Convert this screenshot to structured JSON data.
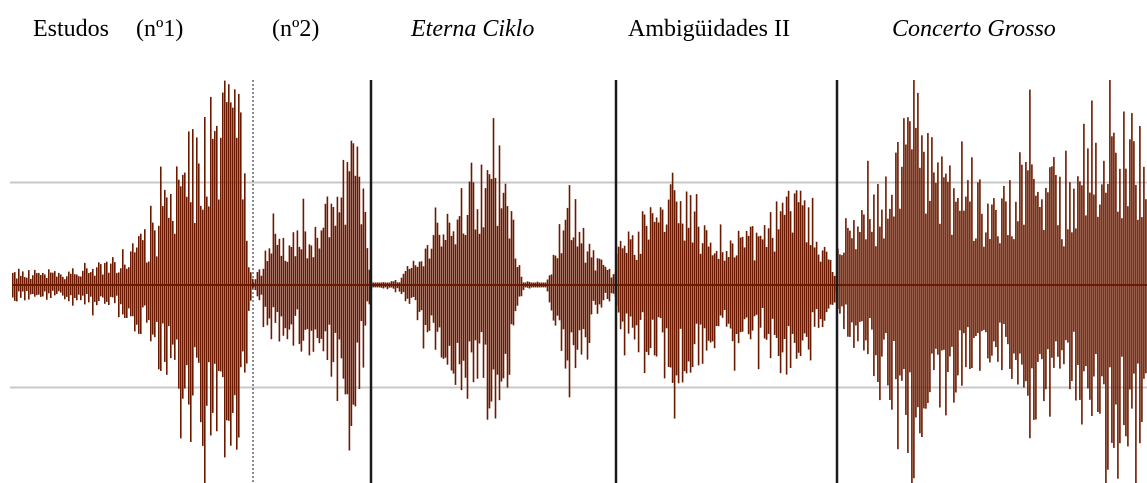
{
  "labels": {
    "estudos": "Estudos",
    "n1": "(nº1)",
    "n2": "(nº2)",
    "eterna": "Eterna Ciklo",
    "ambiguidades": "Ambigüidades II",
    "concerto": "Concerto Grosso"
  },
  "colors": {
    "waveform": "#6b1a00",
    "gridline": "#c8c8c8",
    "divider": "#1a1a1a"
  },
  "chart_data": {
    "type": "area",
    "description_of_series": "audio amplitude envelope",
    "ylim": [
      -1,
      1
    ],
    "gridlines_at": [
      -0.5,
      0,
      0.5
    ],
    "segments": [
      {
        "label": "Estudos (nº1)",
        "x_range": [
          0.0,
          0.212
        ],
        "envelope": [
          [
            0.0,
            0.08
          ],
          [
            0.05,
            0.08
          ],
          [
            0.09,
            0.14
          ],
          [
            0.12,
            0.3
          ],
          [
            0.15,
            0.7
          ],
          [
            0.18,
            1.0
          ],
          [
            0.2,
            1.0
          ],
          [
            0.21,
            0.05
          ]
        ]
      },
      {
        "label": "(nº2)",
        "x_range": [
          0.212,
          0.316
        ],
        "envelope": [
          [
            0.212,
            0.01
          ],
          [
            0.23,
            0.3
          ],
          [
            0.26,
            0.35
          ],
          [
            0.28,
            0.5
          ],
          [
            0.3,
            1.0
          ],
          [
            0.31,
            0.3
          ],
          [
            0.316,
            0.02
          ]
        ]
      },
      {
        "label": "Eterna Ciklo",
        "x_range": [
          0.316,
          0.532
        ],
        "envelope": [
          [
            0.316,
            0.01
          ],
          [
            0.34,
            0.03
          ],
          [
            0.37,
            0.3
          ],
          [
            0.4,
            0.6
          ],
          [
            0.43,
            0.7
          ],
          [
            0.45,
            0.02
          ],
          [
            0.47,
            0.01
          ],
          [
            0.49,
            0.6
          ],
          [
            0.51,
            0.2
          ],
          [
            0.525,
            0.08
          ]
        ]
      },
      {
        "label": "Ambigüidades II",
        "x_range": [
          0.532,
          0.727
        ],
        "envelope": [
          [
            0.532,
            0.2
          ],
          [
            0.56,
            0.4
          ],
          [
            0.59,
            0.55
          ],
          [
            0.62,
            0.3
          ],
          [
            0.66,
            0.3
          ],
          [
            0.69,
            0.55
          ],
          [
            0.71,
            0.3
          ],
          [
            0.727,
            0.05
          ]
        ]
      },
      {
        "label": "Concerto Grosso",
        "x_range": [
          0.727,
          1.0
        ],
        "envelope": [
          [
            0.727,
            0.2
          ],
          [
            0.76,
            0.5
          ],
          [
            0.79,
            1.0
          ],
          [
            0.83,
            0.6
          ],
          [
            0.87,
            0.45
          ],
          [
            0.9,
            0.8
          ],
          [
            0.93,
            0.5
          ],
          [
            0.96,
            0.8
          ],
          [
            0.98,
            0.9
          ],
          [
            1.0,
            0.8
          ]
        ]
      }
    ],
    "dividers": [
      {
        "x": 0.212,
        "style": "dotted"
      },
      {
        "x": 0.316,
        "style": "solid"
      },
      {
        "x": 0.532,
        "style": "solid"
      },
      {
        "x": 0.727,
        "style": "solid"
      }
    ]
  }
}
